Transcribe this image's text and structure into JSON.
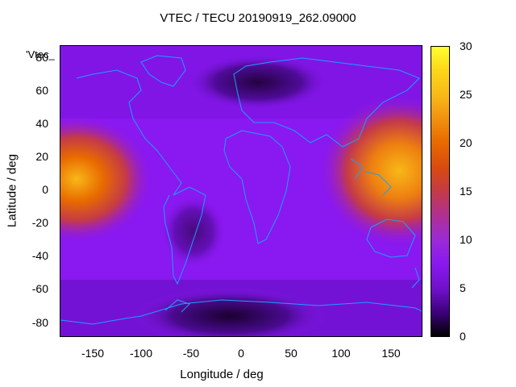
{
  "title": "VTEC / TECU 20190919_262.09000",
  "series_label": "'Vtec_",
  "xlabel": "Longitude / deg",
  "ylabel": "Latitude / deg",
  "chart_data": {
    "type": "heatmap",
    "title": "VTEC / TECU 20190919_262.09000",
    "xlabel": "Longitude / deg",
    "ylabel": "Latitude / deg",
    "xlim": [
      -180,
      180
    ],
    "ylim": [
      -90,
      90
    ],
    "x_ticks": [
      "-150",
      "-100",
      "-50",
      "0",
      "50",
      "100",
      "150"
    ],
    "y_ticks": [
      "-80",
      "-60",
      "-40",
      "-20",
      "0",
      "20",
      "40",
      "60",
      "80"
    ],
    "colorbar": {
      "range": [
        0,
        30
      ],
      "ticks": [
        "0",
        "5",
        "10",
        "15",
        "20",
        "25",
        "30"
      ]
    },
    "overlay": "coastlines",
    "colors": {
      "coast": "#1aa0ff",
      "low": "#000000",
      "mid": "#8a18f0",
      "high": "#ffff30"
    },
    "hot_spots": [
      {
        "lon": -165,
        "lat": 5,
        "value": 22
      },
      {
        "lon": 150,
        "lat": 10,
        "value": 24
      }
    ]
  }
}
